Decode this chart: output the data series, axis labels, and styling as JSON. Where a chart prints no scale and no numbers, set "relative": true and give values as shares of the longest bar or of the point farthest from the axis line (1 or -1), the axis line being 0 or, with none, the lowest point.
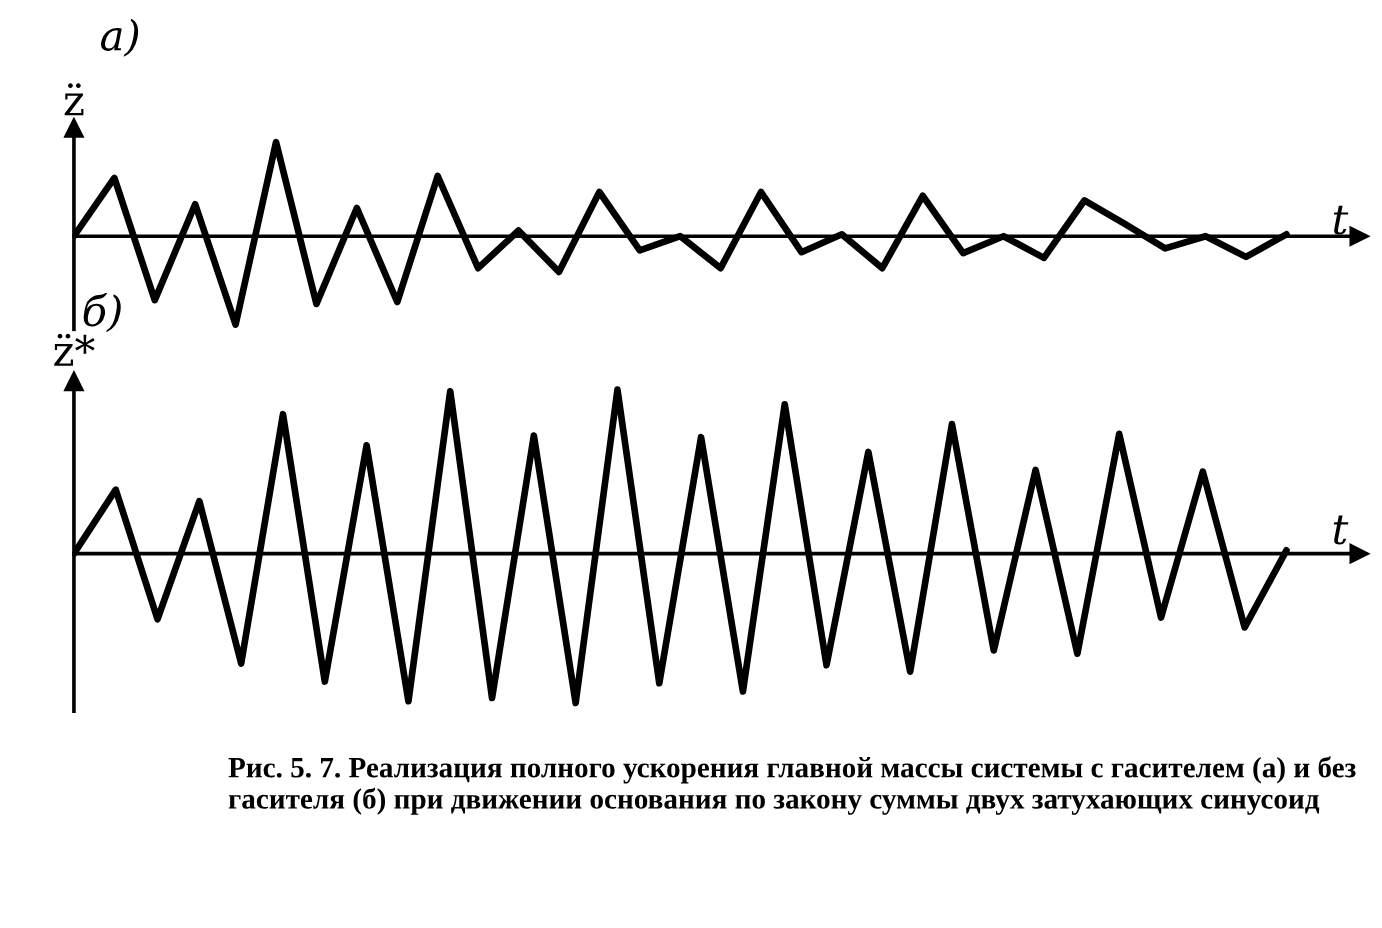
{
  "chart_data": [
    {
      "type": "line",
      "title": "а)",
      "ylabel": "z̈",
      "xlabel": "t",
      "relative": true,
      "categories": [
        null,
        null,
        null,
        null,
        null,
        null,
        null,
        null,
        null,
        null,
        null,
        null,
        null,
        null,
        null,
        null,
        null,
        null,
        null,
        null,
        null,
        null,
        null,
        null,
        null,
        null,
        null,
        null,
        null,
        null,
        null
      ],
      "series": [
        {
          "color": "#000000",
          "values": [
            0,
            0.62,
            -0.68,
            0.34,
            -0.94,
            1,
            -0.72,
            0.3,
            -0.7,
            0.64,
            -0.34,
            0.06,
            -0.38,
            0.47,
            -0.15,
            0,
            -0.34,
            0.47,
            -0.17,
            0.02,
            -0.34,
            0.43,
            -0.18,
            0,
            -0.23,
            0.38,
            0.13,
            -0.13,
            0,
            -0.22,
            0.02
          ]
        }
      ]
    },
    {
      "type": "line",
      "title": "б)",
      "ylabel": "z̈*",
      "xlabel": "t",
      "relative": true,
      "categories": [
        null,
        null,
        null,
        null,
        null,
        null,
        null,
        null,
        null,
        null,
        null,
        null,
        null,
        null,
        null,
        null,
        null,
        null,
        null,
        null,
        null,
        null,
        null,
        null,
        null,
        null,
        null,
        null,
        null,
        null
      ],
      "series": [
        {
          "color": "#000000",
          "values": [
            0,
            0.39,
            -0.4,
            0.32,
            -0.67,
            0.85,
            -0.78,
            0.66,
            -0.9,
            0.99,
            -0.88,
            0.72,
            -0.91,
            1,
            -0.79,
            0.71,
            -0.84,
            0.91,
            -0.68,
            0.62,
            -0.72,
            0.79,
            -0.59,
            0.51,
            -0.61,
            0.73,
            -0.39,
            0.5,
            -0.45,
            0.02
          ]
        }
      ],
      "annotations": [
        "Рис. 5. 7. Реализация полного ускорения главной массы системы с гасителем (а) и без гасителя (б) при движении основания по закону суммы двух затухающих синусоид"
      ]
    }
  ]
}
